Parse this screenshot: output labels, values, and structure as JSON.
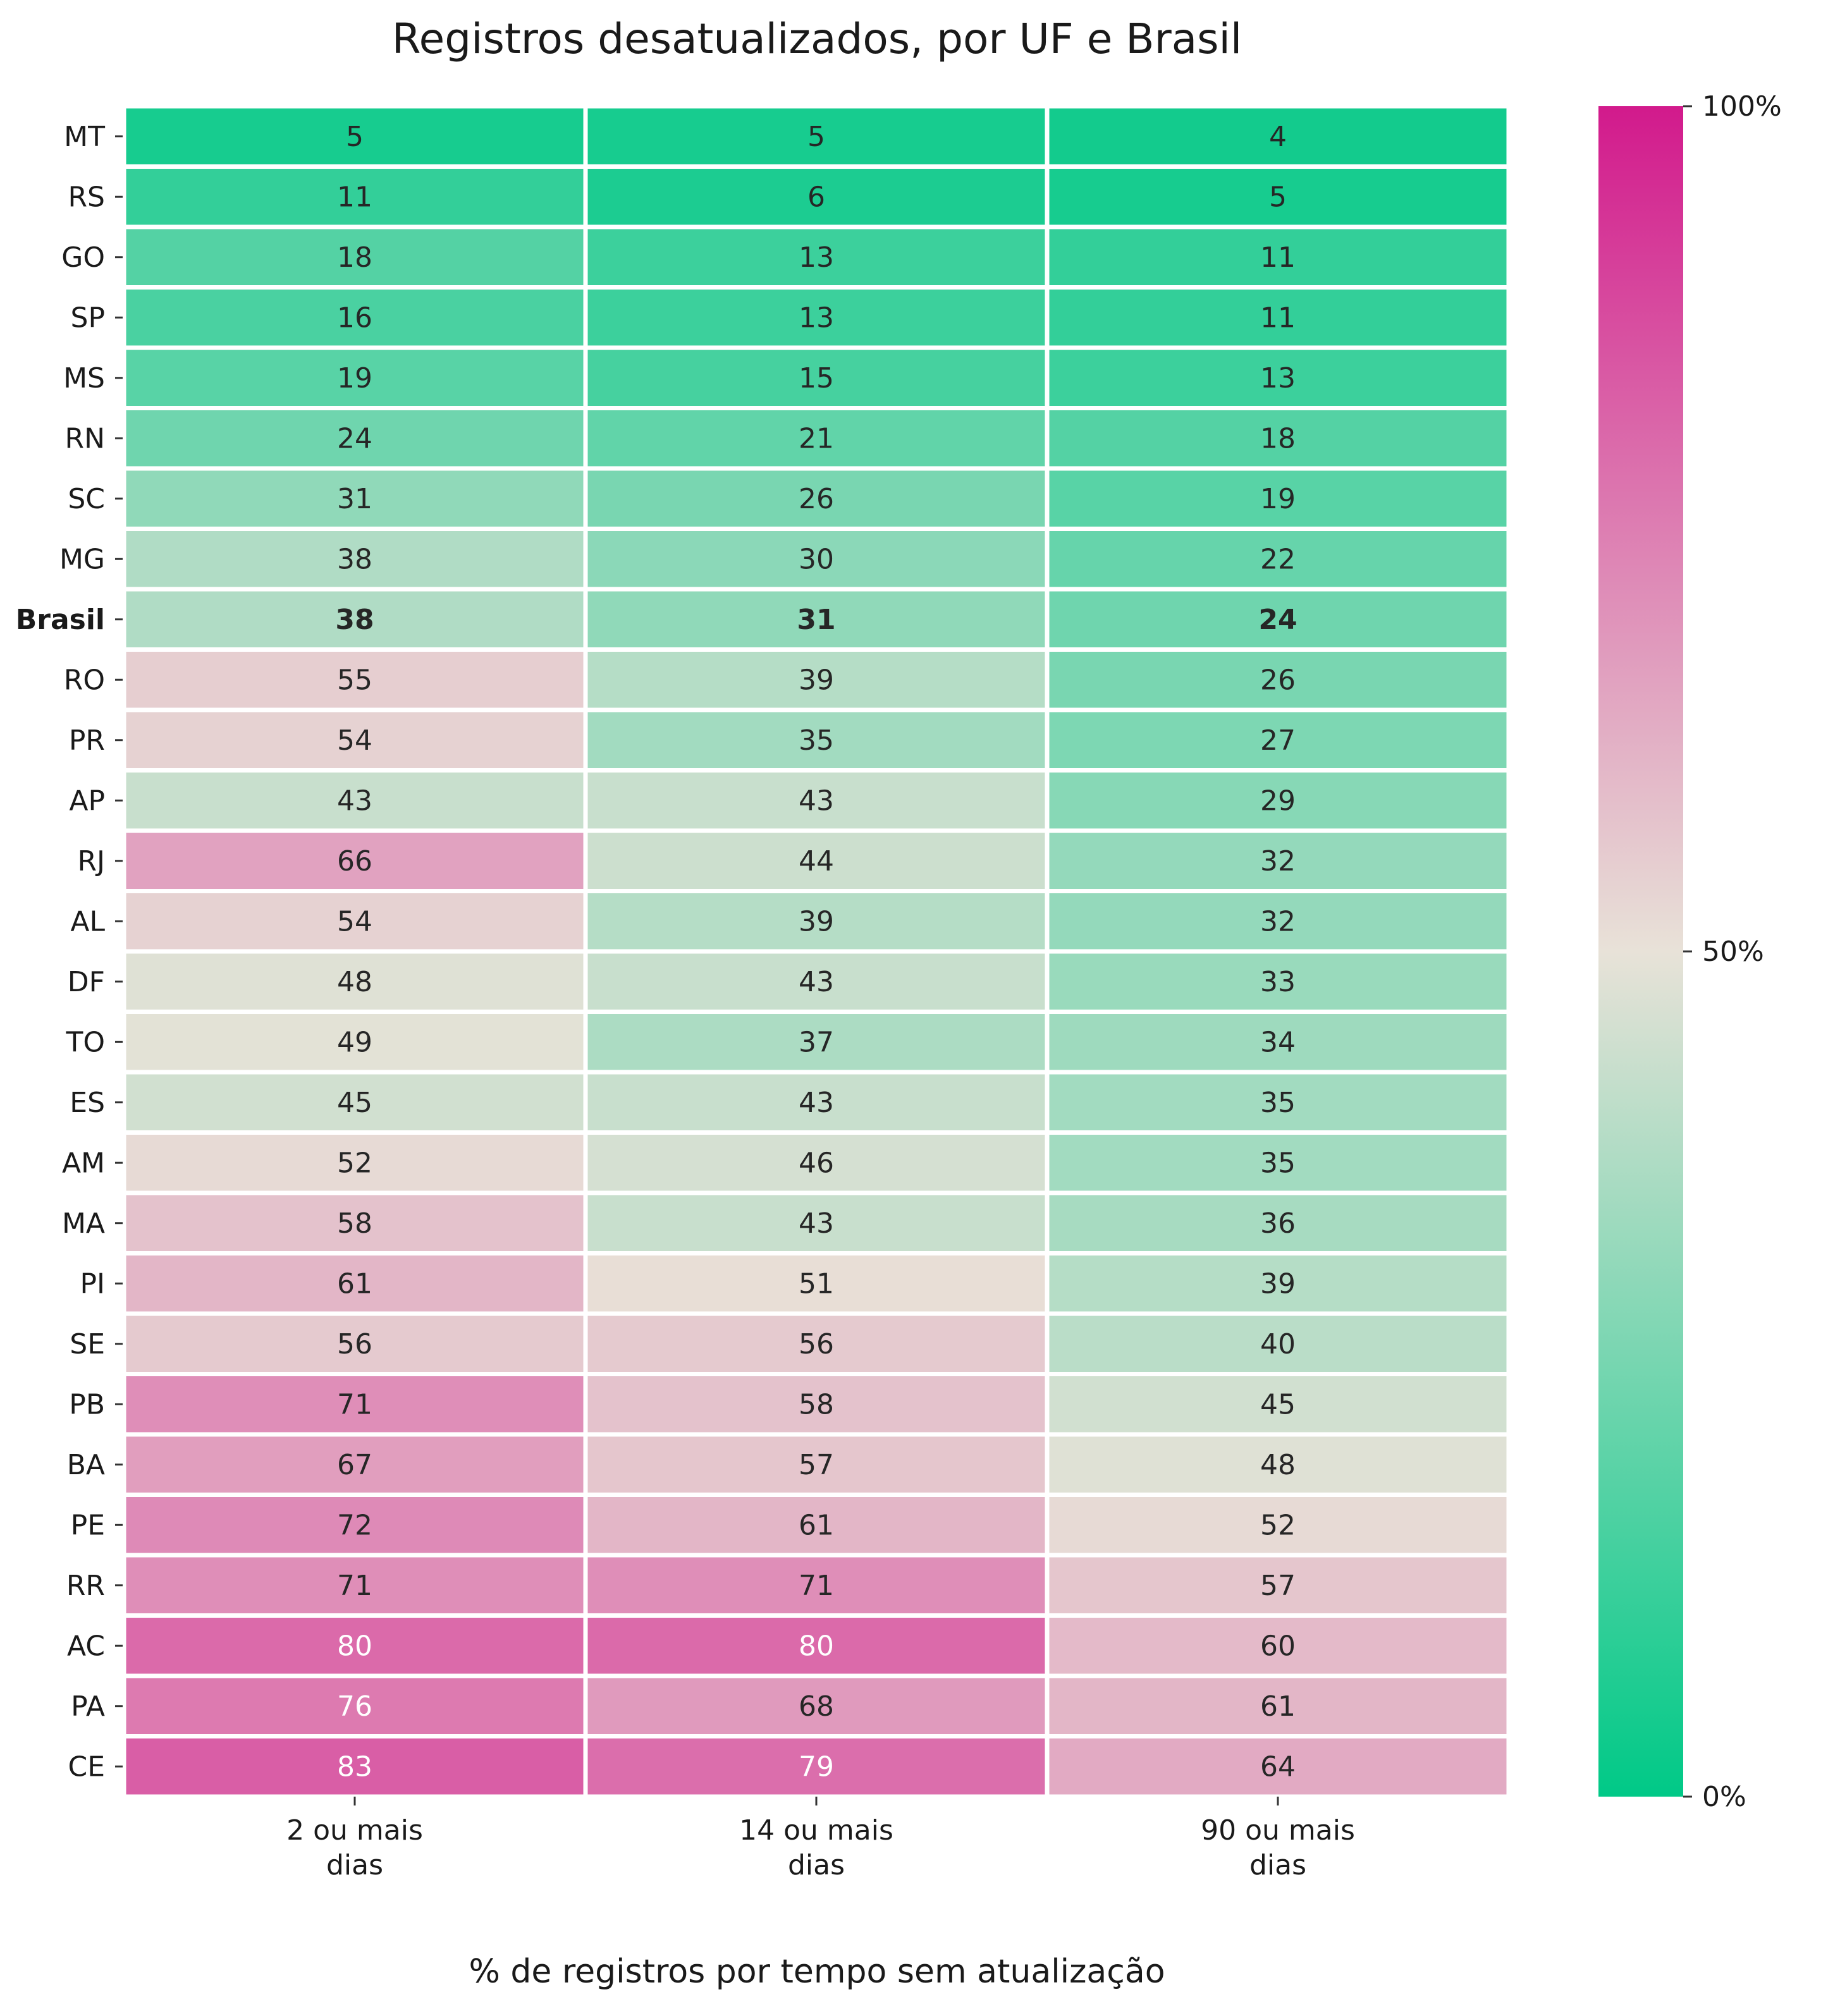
{
  "chart_data": {
    "type": "heatmap",
    "title": "Registros desatualizados, por UF e Brasil",
    "xlabel": "% de registros por tempo sem atualização",
    "ylabel": "",
    "columns": [
      [
        "2 ou mais",
        "dias"
      ],
      [
        "14 ou mais",
        "dias"
      ],
      [
        "90 ou mais",
        "dias"
      ]
    ],
    "rows": [
      "MT",
      "RS",
      "GO",
      "SP",
      "MS",
      "RN",
      "SC",
      "MG",
      "Brasil",
      "RO",
      "PR",
      "AP",
      "RJ",
      "AL",
      "DF",
      "TO",
      "ES",
      "AM",
      "MA",
      "PI",
      "SE",
      "PB",
      "BA",
      "PE",
      "RR",
      "AC",
      "PA",
      "CE"
    ],
    "highlight_row": "Brasil",
    "values": [
      [
        5,
        5,
        4
      ],
      [
        11,
        6,
        5
      ],
      [
        18,
        13,
        11
      ],
      [
        16,
        13,
        11
      ],
      [
        19,
        15,
        13
      ],
      [
        24,
        21,
        18
      ],
      [
        31,
        26,
        19
      ],
      [
        38,
        30,
        22
      ],
      [
        38,
        31,
        24
      ],
      [
        55,
        39,
        26
      ],
      [
        54,
        35,
        27
      ],
      [
        43,
        43,
        29
      ],
      [
        66,
        44,
        32
      ],
      [
        54,
        39,
        32
      ],
      [
        48,
        43,
        33
      ],
      [
        49,
        37,
        34
      ],
      [
        45,
        43,
        35
      ],
      [
        52,
        46,
        35
      ],
      [
        58,
        43,
        36
      ],
      [
        61,
        51,
        39
      ],
      [
        56,
        56,
        40
      ],
      [
        71,
        58,
        45
      ],
      [
        67,
        57,
        48
      ],
      [
        72,
        61,
        52
      ],
      [
        71,
        71,
        57
      ],
      [
        80,
        80,
        60
      ],
      [
        76,
        68,
        61
      ],
      [
        83,
        79,
        64
      ]
    ],
    "value_range": [
      0,
      100
    ],
    "colormap": {
      "low": "#00c987",
      "mid": "#e8e2d8",
      "high": "#d21a8c"
    },
    "colorbar_ticks": [
      "0%",
      "50%",
      "100%"
    ],
    "colorbar_tick_values": [
      0,
      50,
      100
    ],
    "grid": false,
    "legend": "colorbar-right"
  }
}
